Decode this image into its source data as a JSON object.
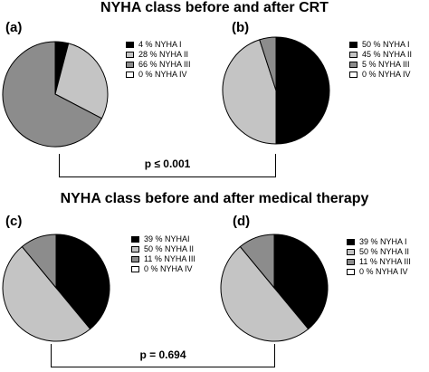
{
  "titles": {
    "top": "NYHA class before and after CRT",
    "bottom": "NYHA class before and after medical therapy"
  },
  "colors": {
    "NYHA I": "#000000",
    "NYHA II": "#c4c4c4",
    "NYHA III": "#8c8c8c",
    "NYHA IV": "#ffffff"
  },
  "p_values": {
    "top": "p ≤ 0.001",
    "bottom": "p = 0.694"
  },
  "chart_data": [
    {
      "type": "pie",
      "panel": "(a)",
      "categories": [
        "NYHA I",
        "NYHA II",
        "NYHA III",
        "NYHA IV"
      ],
      "values": [
        4,
        28,
        66,
        0
      ],
      "legend_labels": [
        "4 % NYHA I",
        "28 % NYHA II",
        "66 % NYHA III",
        "0 % NYHA IV"
      ]
    },
    {
      "type": "pie",
      "panel": "(b)",
      "categories": [
        "NYHA I",
        "NYHA II",
        "NYHA III",
        "NYHA IV"
      ],
      "values": [
        50,
        45,
        5,
        0
      ],
      "legend_labels": [
        "50 % NYHA I",
        "45 % NYHA II",
        "5 % NYHA III",
        "0 % NYHA IV"
      ]
    },
    {
      "type": "pie",
      "panel": "(c)",
      "categories": [
        "NYHA I",
        "NYHA II",
        "NYHA III",
        "NYHA IV"
      ],
      "values": [
        39,
        50,
        11,
        0
      ],
      "legend_labels": [
        "39 % NYHAI",
        "50 % NYHA II",
        "11 % NYHA III",
        "0 % NYHA IV"
      ]
    },
    {
      "type": "pie",
      "panel": "(d)",
      "categories": [
        "NYHA I",
        "NYHA II",
        "NYHA III",
        "NYHA IV"
      ],
      "values": [
        39,
        50,
        11,
        0
      ],
      "legend_labels": [
        "39 % NYHA I",
        "50 % NYHA II",
        "11 % NYHA III",
        "0 % NYHA IV"
      ]
    }
  ]
}
